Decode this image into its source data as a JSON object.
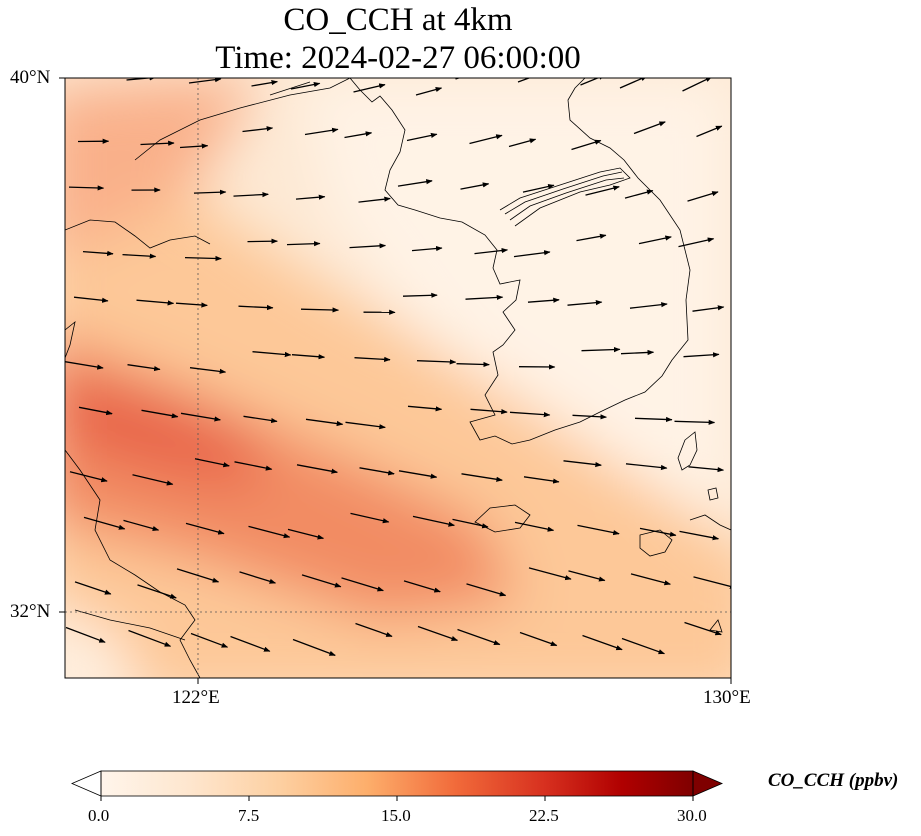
{
  "title": {
    "line1": "CO_CCH at 4km",
    "line2": "Time: 2024-02-27 06:00:00"
  },
  "map": {
    "lon_range": [
      120,
      130
    ],
    "lat_range": [
      31,
      40
    ],
    "lat_tick_labels": [
      "40°N",
      "32°N"
    ],
    "lon_tick_labels": [
      "122°E",
      "130°E"
    ],
    "gridlines": {
      "lon": 122,
      "lat": 32,
      "style": "dotted"
    },
    "overlay": "wind vectors (arrows)"
  },
  "colorbar": {
    "label": "CO_CCH (ppbv)",
    "min": 0.0,
    "max": 30.0,
    "tick_labels": [
      "0.0",
      "7.5",
      "15.0",
      "22.5",
      "30.0"
    ],
    "colormap": [
      "#fff5eb",
      "#fee6ce",
      "#fdd0a2",
      "#fdae6b",
      "#f16a3a",
      "#d7301f",
      "#b00000",
      "#7f0000"
    ],
    "extend": "both"
  }
}
